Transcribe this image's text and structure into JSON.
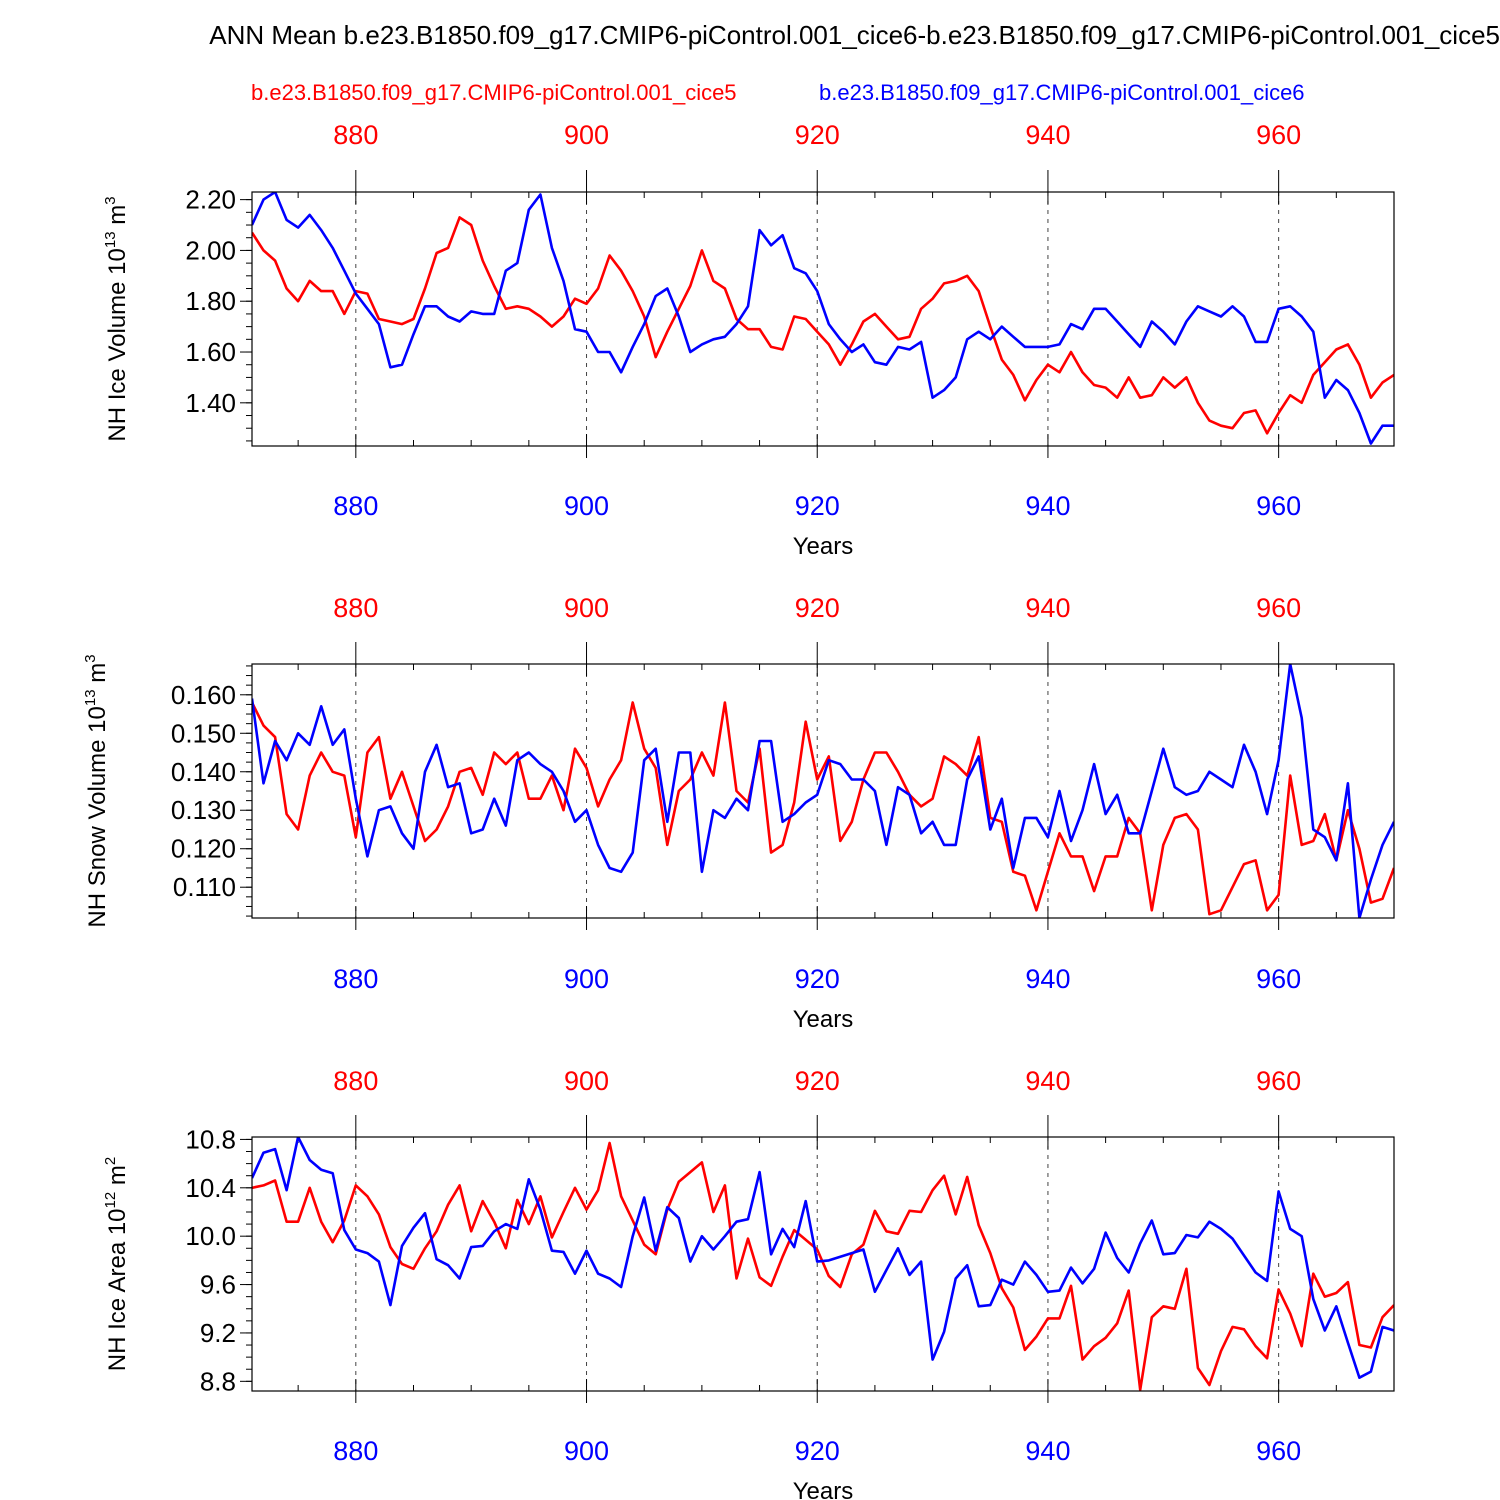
{
  "title": "ANN Mean b.e23.B1850.f09_g17.CMIP6-piControl.001_cice6-b.e23.B1850.f09_g17.CMIP6-piControl.001_cice5",
  "colors": {
    "case_red": "#ff0000",
    "case_blue": "#0000ff",
    "axes": "#000000",
    "grid": "#444444"
  },
  "chart_data": [
    {
      "type": "line",
      "ylabel_main": "NH Ice Volume 10",
      "ylabel_exp": "13",
      "ylabel_unit": " m",
      "ylabel_unit_exp": "3",
      "xlabel": "Years",
      "xlim": [
        871,
        970
      ],
      "ylim": [
        1.23,
        2.23
      ],
      "yticks": [
        1.4,
        1.6,
        1.8,
        2.0,
        2.2
      ],
      "ytick_labels": [
        "1.40",
        "1.60",
        "1.80",
        "2.00",
        "2.20"
      ],
      "xticks": [
        880,
        900,
        920,
        940,
        960
      ],
      "xtick_labels": [
        "880",
        "900",
        "920",
        "940",
        "960"
      ],
      "series": [
        {
          "name": "b.e23.B1850.f09_g17.CMIP6-piControl.001_cice5",
          "color": "#ff0000",
          "values": [
            2.07,
            2.0,
            1.96,
            1.85,
            1.8,
            1.88,
            1.84,
            1.84,
            1.75,
            1.84,
            1.83,
            1.73,
            1.72,
            1.71,
            1.73,
            1.85,
            1.99,
            2.01,
            2.13,
            2.1,
            1.96,
            1.86,
            1.77,
            1.78,
            1.77,
            1.74,
            1.7,
            1.74,
            1.81,
            1.79,
            1.85,
            1.98,
            1.92,
            1.84,
            1.74,
            1.58,
            1.68,
            1.77,
            1.86,
            2.0,
            1.88,
            1.85,
            1.73,
            1.69,
            1.69,
            1.62,
            1.61,
            1.74,
            1.73,
            1.68,
            1.63,
            1.55,
            1.63,
            1.72,
            1.75,
            1.7,
            1.65,
            1.66,
            1.77,
            1.81,
            1.87,
            1.88,
            1.9,
            1.84,
            1.7,
            1.57,
            1.51,
            1.41,
            1.49,
            1.55,
            1.52,
            1.6,
            1.52,
            1.47,
            1.46,
            1.42,
            1.5,
            1.42,
            1.43,
            1.5,
            1.46,
            1.5,
            1.4,
            1.33,
            1.31,
            1.3,
            1.36,
            1.37,
            1.28,
            1.36,
            1.43,
            1.4,
            1.51,
            1.56,
            1.61,
            1.63,
            1.55,
            1.42,
            1.48,
            1.51
          ]
        },
        {
          "name": "b.e23.B1850.f09_g17.CMIP6-piControl.001_cice6",
          "color": "#0000ff",
          "values": [
            2.1,
            2.2,
            2.23,
            2.12,
            2.09,
            2.14,
            2.08,
            2.01,
            1.92,
            1.83,
            1.77,
            1.71,
            1.54,
            1.55,
            1.67,
            1.78,
            1.78,
            1.74,
            1.72,
            1.76,
            1.75,
            1.75,
            1.92,
            1.95,
            2.16,
            2.22,
            2.01,
            1.88,
            1.69,
            1.68,
            1.6,
            1.6,
            1.52,
            1.62,
            1.71,
            1.82,
            1.85,
            1.74,
            1.6,
            1.63,
            1.65,
            1.66,
            1.71,
            1.78,
            2.08,
            2.02,
            2.06,
            1.93,
            1.91,
            1.84,
            1.71,
            1.65,
            1.6,
            1.63,
            1.56,
            1.55,
            1.62,
            1.61,
            1.64,
            1.42,
            1.45,
            1.5,
            1.65,
            1.68,
            1.65,
            1.7,
            1.66,
            1.62,
            1.62,
            1.62,
            1.63,
            1.71,
            1.69,
            1.77,
            1.77,
            1.72,
            1.67,
            1.62,
            1.72,
            1.68,
            1.63,
            1.72,
            1.78,
            1.76,
            1.74,
            1.78,
            1.74,
            1.64,
            1.64,
            1.77,
            1.78,
            1.74,
            1.68,
            1.42,
            1.49,
            1.45,
            1.36,
            1.24,
            1.31,
            1.31
          ]
        }
      ]
    },
    {
      "type": "line",
      "ylabel_main": "NH Snow Volume 10",
      "ylabel_exp": "13",
      "ylabel_unit": " m",
      "ylabel_unit_exp": "3",
      "xlabel": "Years",
      "xlim": [
        871,
        970
      ],
      "ylim": [
        0.102,
        0.168
      ],
      "yticks": [
        0.11,
        0.12,
        0.13,
        0.14,
        0.15,
        0.16
      ],
      "ytick_labels": [
        "0.110",
        "0.120",
        "0.130",
        "0.140",
        "0.150",
        "0.160"
      ],
      "xticks": [
        880,
        900,
        920,
        940,
        960
      ],
      "xtick_labels": [
        "880",
        "900",
        "920",
        "940",
        "960"
      ],
      "series": [
        {
          "name": "b.e23.B1850.f09_g17.CMIP6-piControl.001_cice5",
          "color": "#ff0000",
          "values": [
            0.158,
            0.152,
            0.149,
            0.129,
            0.125,
            0.139,
            0.145,
            0.14,
            0.139,
            0.123,
            0.145,
            0.149,
            0.133,
            0.14,
            0.131,
            0.122,
            0.125,
            0.131,
            0.14,
            0.141,
            0.134,
            0.145,
            0.142,
            0.145,
            0.133,
            0.133,
            0.139,
            0.13,
            0.146,
            0.141,
            0.131,
            0.138,
            0.143,
            0.158,
            0.146,
            0.141,
            0.121,
            0.135,
            0.138,
            0.145,
            0.139,
            0.158,
            0.135,
            0.132,
            0.146,
            0.119,
            0.121,
            0.132,
            0.153,
            0.138,
            0.144,
            0.122,
            0.127,
            0.138,
            0.145,
            0.145,
            0.14,
            0.134,
            0.131,
            0.133,
            0.144,
            0.142,
            0.139,
            0.149,
            0.128,
            0.127,
            0.114,
            0.113,
            0.104,
            0.114,
            0.124,
            0.118,
            0.118,
            0.109,
            0.118,
            0.118,
            0.128,
            0.124,
            0.104,
            0.121,
            0.128,
            0.129,
            0.125,
            0.103,
            0.104,
            0.11,
            0.116,
            0.117,
            0.104,
            0.108,
            0.139,
            0.121,
            0.122,
            0.129,
            0.117,
            0.13,
            0.12,
            0.106,
            0.107,
            0.115
          ]
        },
        {
          "name": "b.e23.B1850.f09_g17.CMIP6-piControl.001_cice6",
          "color": "#0000ff",
          "values": [
            0.159,
            0.137,
            0.148,
            0.143,
            0.15,
            0.147,
            0.157,
            0.147,
            0.151,
            0.133,
            0.118,
            0.13,
            0.131,
            0.124,
            0.12,
            0.14,
            0.147,
            0.136,
            0.137,
            0.124,
            0.125,
            0.133,
            0.126,
            0.143,
            0.145,
            0.142,
            0.14,
            0.135,
            0.127,
            0.13,
            0.121,
            0.115,
            0.114,
            0.119,
            0.143,
            0.146,
            0.127,
            0.145,
            0.145,
            0.114,
            0.13,
            0.128,
            0.133,
            0.13,
            0.148,
            0.148,
            0.127,
            0.129,
            0.132,
            0.134,
            0.143,
            0.142,
            0.138,
            0.138,
            0.135,
            0.121,
            0.136,
            0.134,
            0.124,
            0.127,
            0.121,
            0.121,
            0.138,
            0.144,
            0.125,
            0.133,
            0.115,
            0.128,
            0.128,
            0.123,
            0.135,
            0.122,
            0.13,
            0.142,
            0.129,
            0.134,
            0.124,
            0.124,
            0.135,
            0.146,
            0.136,
            0.134,
            0.135,
            0.14,
            0.138,
            0.136,
            0.147,
            0.14,
            0.129,
            0.143,
            0.168,
            0.154,
            0.125,
            0.123,
            0.117,
            0.137,
            0.102,
            0.112,
            0.121,
            0.127
          ]
        }
      ]
    },
    {
      "type": "line",
      "ylabel_main": "NH Ice Area 10",
      "ylabel_exp": "12",
      "ylabel_unit": " m",
      "ylabel_unit_exp": "2",
      "xlabel": "Years",
      "xlim": [
        871,
        970
      ],
      "ylim": [
        8.72,
        10.82
      ],
      "yticks": [
        8.8,
        9.2,
        9.6,
        10.0,
        10.4,
        10.8
      ],
      "ytick_labels": [
        "8.8",
        "9.2",
        "9.6",
        "10.0",
        "10.4",
        "10.8"
      ],
      "xticks": [
        880,
        900,
        920,
        940,
        960
      ],
      "xtick_labels": [
        "880",
        "900",
        "920",
        "940",
        "960"
      ],
      "series": [
        {
          "name": "b.e23.B1850.f09_g17.CMIP6-piControl.001_cice5",
          "color": "#ff0000",
          "values": [
            10.4,
            10.42,
            10.46,
            10.12,
            10.12,
            10.4,
            10.12,
            9.95,
            10.13,
            10.42,
            10.33,
            10.18,
            9.91,
            9.77,
            9.73,
            9.9,
            10.04,
            10.26,
            10.42,
            10.04,
            10.29,
            10.12,
            9.9,
            10.3,
            10.1,
            10.33,
            9.99,
            10.2,
            10.4,
            10.22,
            10.38,
            10.77,
            10.33,
            10.13,
            9.93,
            9.85,
            10.22,
            10.45,
            10.53,
            10.61,
            10.2,
            10.42,
            9.65,
            9.98,
            9.66,
            9.59,
            9.83,
            10.05,
            9.97,
            9.89,
            9.67,
            9.58,
            9.85,
            9.93,
            10.21,
            10.04,
            10.02,
            10.21,
            10.2,
            10.38,
            10.5,
            10.18,
            10.49,
            10.09,
            9.86,
            9.57,
            9.41,
            9.06,
            9.17,
            9.32,
            9.32,
            9.59,
            8.98,
            9.09,
            9.16,
            9.28,
            9.55,
            8.73,
            9.33,
            9.42,
            9.4,
            9.73,
            8.91,
            8.77,
            9.05,
            9.25,
            9.23,
            9.09,
            8.99,
            9.56,
            9.36,
            9.09,
            9.69,
            9.5,
            9.53,
            9.62,
            9.1,
            9.08,
            9.33,
            9.43
          ]
        },
        {
          "name": "b.e23.B1850.f09_g17.CMIP6-piControl.001_cice6",
          "color": "#0000ff",
          "values": [
            10.48,
            10.69,
            10.72,
            10.38,
            10.82,
            10.63,
            10.55,
            10.52,
            10.05,
            9.89,
            9.86,
            9.79,
            9.43,
            9.92,
            10.07,
            10.19,
            9.81,
            9.76,
            9.65,
            9.91,
            9.92,
            10.04,
            10.1,
            10.06,
            10.47,
            10.22,
            9.88,
            9.87,
            9.69,
            9.88,
            9.69,
            9.65,
            9.58,
            10.0,
            10.32,
            9.88,
            10.24,
            10.15,
            9.79,
            10.0,
            9.89,
            10.0,
            10.12,
            10.14,
            10.53,
            9.85,
            10.06,
            9.91,
            10.29,
            9.79,
            9.8,
            9.83,
            9.86,
            9.89,
            9.54,
            9.72,
            9.9,
            9.68,
            9.79,
            8.98,
            9.21,
            9.65,
            9.76,
            9.42,
            9.43,
            9.64,
            9.6,
            9.79,
            9.68,
            9.54,
            9.55,
            9.74,
            9.61,
            9.73,
            10.03,
            9.82,
            9.7,
            9.94,
            10.13,
            9.85,
            9.86,
            10.01,
            9.99,
            10.12,
            10.06,
            9.98,
            9.84,
            9.7,
            9.63,
            10.37,
            10.06,
            10.0,
            9.48,
            9.22,
            9.42,
            9.12,
            8.83,
            8.88,
            9.25,
            9.22
          ]
        }
      ]
    }
  ]
}
